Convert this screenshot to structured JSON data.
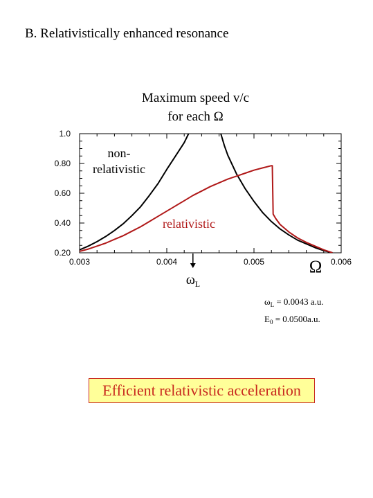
{
  "section_title": "B. Relativistically enhanced resonance",
  "chart_title_line1": "Maximum speed v/c",
  "chart_title_line2": "for each Ω",
  "colors": {
    "relativistic": "#b01818",
    "non_relativistic": "#000000",
    "callout_border": "#c8281e",
    "callout_bg": "#ffff99"
  },
  "params": {
    "omega_symbol": "ω",
    "omega_sub": "L",
    "omega_value": "= 0.0043 a.u.",
    "e_symbol": "E",
    "e_sub": "0",
    "e_value": "= 0.0500a.u."
  },
  "callout": "Efficient relativistic acceleration",
  "chart_data": {
    "type": "line",
    "xlim": [
      0.003,
      0.006
    ],
    "ylim": [
      0.2,
      1.0
    ],
    "xticks": [
      "0.003",
      "0.004",
      "0.005",
      "0.006"
    ],
    "yticks": [
      "0.20",
      "0.40",
      "0.60",
      "0.80",
      "1.0"
    ],
    "xlabel": "Ω",
    "marker": {
      "symbol": "ω",
      "sub": "L",
      "x": 0.0043
    },
    "annotations": [
      {
        "text": "non-",
        "color": "#000000"
      },
      {
        "text": "relativistic",
        "color": "#000000"
      },
      {
        "text": "relativistic",
        "color": "#b01818"
      }
    ],
    "series": [
      {
        "color": "#000000",
        "x": [
          0.003,
          0.0031,
          0.0032,
          0.0033,
          0.0034,
          0.0035,
          0.0036,
          0.0037,
          0.0038,
          0.0039,
          0.004,
          0.0041,
          0.0042,
          0.00425,
          0.00432,
          0.00442
        ],
        "y": [
          0.22,
          0.245,
          0.275,
          0.31,
          0.35,
          0.395,
          0.45,
          0.51,
          0.585,
          0.665,
          0.76,
          0.85,
          0.94,
          1.0,
          null,
          null
        ]
      },
      {
        "color": "#000000",
        "x": [
          0.00462,
          0.00466,
          0.0047,
          0.0048,
          0.0049,
          0.005,
          0.0051,
          0.0052,
          0.0053,
          0.0054,
          0.0055,
          0.0056,
          0.0057,
          0.0058,
          0.0059
        ],
        "y": [
          1.0,
          0.92,
          0.855,
          0.73,
          0.63,
          0.545,
          0.47,
          0.41,
          0.36,
          0.32,
          0.285,
          0.26,
          0.235,
          0.215,
          0.2
        ]
      },
      {
        "color": "#b01818",
        "x": [
          0.003,
          0.0031,
          0.0032,
          0.0033,
          0.0034,
          0.0035,
          0.0036,
          0.0037,
          0.0038,
          0.0039,
          0.004,
          0.0041,
          0.0042,
          0.0043,
          0.0044,
          0.0045,
          0.0046,
          0.0047,
          0.0048,
          0.0049,
          0.005,
          0.0051,
          0.0052,
          0.00521,
          0.00522,
          0.00525,
          0.0053,
          0.0054,
          0.0055,
          0.0056,
          0.0057,
          0.0058,
          0.0059
        ],
        "y": [
          0.21,
          0.225,
          0.245,
          0.265,
          0.29,
          0.315,
          0.345,
          0.375,
          0.41,
          0.445,
          0.48,
          0.515,
          0.55,
          0.585,
          0.615,
          0.645,
          0.67,
          0.695,
          0.715,
          0.735,
          0.755,
          0.77,
          0.785,
          0.785,
          0.46,
          0.43,
          0.39,
          0.34,
          0.3,
          0.27,
          0.245,
          0.22,
          0.2
        ]
      }
    ]
  }
}
